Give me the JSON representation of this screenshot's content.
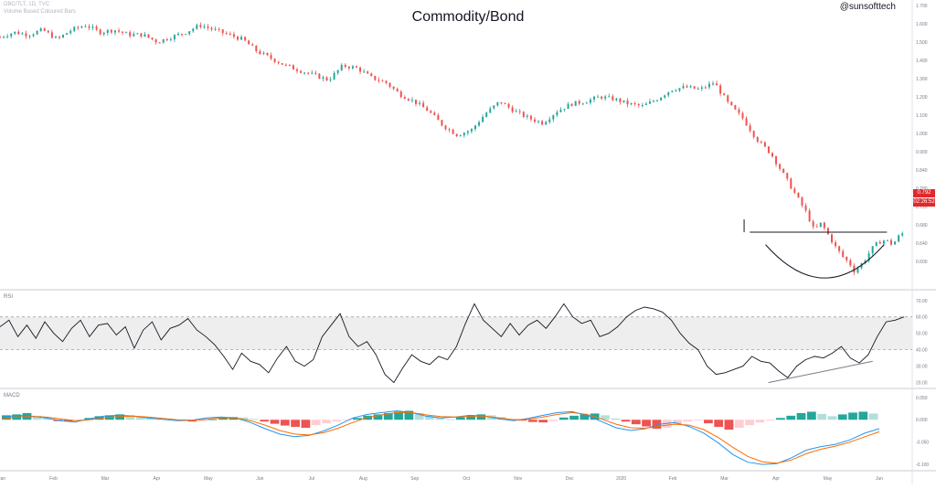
{
  "header": {
    "title": "Commodity/Bond",
    "symbol_line": "DBC/TLT, 1D, TVC",
    "volume_line": "Volume Based Coloured Bars",
    "handle": "@sunsofttech"
  },
  "panes": {
    "rsi_label": "RSI",
    "macd_label": "MACD"
  },
  "price_tag": {
    "value": "0.792",
    "countdown": "02:26:52",
    "color": "#e0292b"
  },
  "colors": {
    "up": "#26a69a",
    "down": "#ef5350",
    "rsi_line": "#131722",
    "macd_line": "#2196f3",
    "signal_line": "#ff6d00",
    "pattern_line": "#131722",
    "grid_band": "#eeeeee"
  },
  "chart_data": [
    {
      "type": "candlestick",
      "title": "Commodity/Bond",
      "x_ticks": [
        "Jan",
        "Feb",
        "Mar",
        "Apr",
        "May",
        "Jun",
        "Jul",
        "Aug",
        "Sep",
        "Oct",
        "Nov",
        "Dec",
        "2020",
        "Feb",
        "Mar",
        "Apr",
        "May",
        "Jun"
      ],
      "y_ticks": [
        "1.700",
        "1.600",
        "1.500",
        "1.400",
        "1.300",
        "1.200",
        "1.100",
        "1.000",
        "0.900",
        "0.840",
        "0.780",
        "0.720",
        "0.680",
        "0.640",
        "0.600"
      ],
      "ylim": [
        0.57,
        1.75
      ],
      "close_path": [
        [
          0,
          1.61
        ],
        [
          10,
          1.63
        ],
        [
          20,
          1.62
        ],
        [
          30,
          1.64
        ],
        [
          40,
          1.6
        ],
        [
          50,
          1.64
        ],
        [
          60,
          1.66
        ],
        [
          70,
          1.63
        ],
        [
          80,
          1.64
        ],
        [
          90,
          1.62
        ],
        [
          100,
          1.62
        ],
        [
          110,
          1.59
        ],
        [
          120,
          1.61
        ],
        [
          130,
          1.63
        ],
        [
          140,
          1.66
        ],
        [
          150,
          1.64
        ],
        [
          160,
          1.62
        ],
        [
          170,
          1.6
        ],
        [
          180,
          1.55
        ],
        [
          190,
          1.52
        ],
        [
          200,
          1.49
        ],
        [
          210,
          1.47
        ],
        [
          220,
          1.45
        ],
        [
          230,
          1.43
        ],
        [
          240,
          1.49
        ],
        [
          250,
          1.48
        ],
        [
          260,
          1.44
        ],
        [
          270,
          1.42
        ],
        [
          280,
          1.37
        ],
        [
          290,
          1.34
        ],
        [
          300,
          1.3
        ],
        [
          310,
          1.24
        ],
        [
          320,
          1.2
        ],
        [
          330,
          1.22
        ],
        [
          340,
          1.29
        ],
        [
          350,
          1.34
        ],
        [
          360,
          1.3
        ],
        [
          370,
          1.27
        ],
        [
          380,
          1.25
        ],
        [
          390,
          1.3
        ],
        [
          400,
          1.33
        ],
        [
          410,
          1.34
        ],
        [
          420,
          1.36
        ],
        [
          430,
          1.35
        ],
        [
          440,
          1.33
        ],
        [
          450,
          1.32
        ],
        [
          460,
          1.35
        ],
        [
          470,
          1.39
        ],
        [
          480,
          1.4
        ],
        [
          490,
          1.39
        ],
        [
          500,
          1.42
        ],
        [
          510,
          1.33
        ],
        [
          520,
          1.27
        ],
        [
          530,
          1.18
        ],
        [
          540,
          1.12
        ],
        [
          550,
          1.02
        ],
        [
          560,
          0.92
        ],
        [
          565,
          0.87
        ],
        [
          570,
          0.8
        ],
        [
          575,
          0.83
        ],
        [
          580,
          0.78
        ],
        [
          585,
          0.73
        ],
        [
          590,
          0.69
        ],
        [
          595,
          0.66
        ],
        [
          598,
          0.63
        ],
        [
          602,
          0.65
        ],
        [
          606,
          0.68
        ],
        [
          610,
          0.72
        ],
        [
          615,
          0.75
        ],
        [
          620,
          0.76
        ],
        [
          625,
          0.74
        ],
        [
          630,
          0.78
        ],
        [
          633,
          0.79
        ]
      ],
      "neckline_level": 0.792,
      "last_price": "0.792"
    },
    {
      "type": "line",
      "name": "RSI",
      "y_ticks": [
        "70.00",
        "60.00",
        "50.00",
        "40.00",
        "30.00",
        "20.00"
      ],
      "ylim": [
        17,
        76
      ],
      "band": [
        40,
        60
      ],
      "values": [
        [
          0,
          54
        ],
        [
          6,
          58
        ],
        [
          12,
          48
        ],
        [
          18,
          55
        ],
        [
          24,
          47
        ],
        [
          30,
          57
        ],
        [
          36,
          50
        ],
        [
          42,
          45
        ],
        [
          48,
          53
        ],
        [
          54,
          58
        ],
        [
          60,
          48
        ],
        [
          66,
          55
        ],
        [
          72,
          56
        ],
        [
          78,
          49
        ],
        [
          84,
          54
        ],
        [
          90,
          41
        ],
        [
          96,
          52
        ],
        [
          102,
          57
        ],
        [
          108,
          46
        ],
        [
          114,
          53
        ],
        [
          120,
          55
        ],
        [
          126,
          59
        ],
        [
          132,
          52
        ],
        [
          138,
          48
        ],
        [
          144,
          43
        ],
        [
          150,
          36
        ],
        [
          156,
          28
        ],
        [
          162,
          38
        ],
        [
          168,
          33
        ],
        [
          174,
          31
        ],
        [
          180,
          26
        ],
        [
          186,
          35
        ],
        [
          192,
          42
        ],
        [
          198,
          33
        ],
        [
          204,
          30
        ],
        [
          210,
          34
        ],
        [
          216,
          48
        ],
        [
          222,
          55
        ],
        [
          228,
          62
        ],
        [
          234,
          48
        ],
        [
          240,
          42
        ],
        [
          246,
          45
        ],
        [
          252,
          37
        ],
        [
          258,
          25
        ],
        [
          264,
          20
        ],
        [
          270,
          29
        ],
        [
          276,
          37
        ],
        [
          282,
          33
        ],
        [
          288,
          31
        ],
        [
          294,
          36
        ],
        [
          300,
          34
        ],
        [
          306,
          42
        ],
        [
          312,
          56
        ],
        [
          318,
          68
        ],
        [
          324,
          58
        ],
        [
          330,
          53
        ],
        [
          336,
          48
        ],
        [
          342,
          56
        ],
        [
          348,
          49
        ],
        [
          354,
          55
        ],
        [
          360,
          58
        ],
        [
          366,
          53
        ],
        [
          372,
          60
        ],
        [
          378,
          68
        ],
        [
          384,
          60
        ],
        [
          390,
          56
        ],
        [
          396,
          58
        ],
        [
          402,
          48
        ],
        [
          408,
          50
        ],
        [
          414,
          54
        ],
        [
          420,
          60
        ],
        [
          426,
          64
        ],
        [
          432,
          66
        ],
        [
          438,
          65
        ],
        [
          444,
          63
        ],
        [
          450,
          58
        ],
        [
          456,
          50
        ],
        [
          462,
          44
        ],
        [
          468,
          40
        ],
        [
          474,
          30
        ],
        [
          480,
          25
        ],
        [
          486,
          26
        ],
        [
          492,
          28
        ],
        [
          498,
          30
        ],
        [
          504,
          36
        ],
        [
          510,
          33
        ],
        [
          516,
          32
        ],
        [
          522,
          27
        ],
        [
          528,
          23
        ],
        [
          534,
          30
        ],
        [
          540,
          34
        ],
        [
          546,
          36
        ],
        [
          552,
          35
        ],
        [
          558,
          38
        ],
        [
          564,
          42
        ],
        [
          570,
          35
        ],
        [
          576,
          32
        ],
        [
          582,
          37
        ],
        [
          588,
          48
        ],
        [
          594,
          57
        ],
        [
          600,
          58
        ],
        [
          606,
          60
        ]
      ],
      "trendline": [
        [
          515,
          20
        ],
        [
          585,
          33
        ]
      ]
    },
    {
      "type": "histogram+line",
      "name": "MACD",
      "y_ticks": [
        "0.050",
        "0.000",
        "-0.050",
        "-0.100"
      ],
      "ylim": [
        -0.112,
        0.068
      ],
      "histogram": [
        0.01,
        0.012,
        0.015,
        0.009,
        0.004,
        -0.003,
        -0.004,
        -0.002,
        0.004,
        0.008,
        0.01,
        0.012,
        0.01,
        0.007,
        0.004,
        0.002,
        0.001,
        -0.002,
        -0.004,
        -0.003,
        0.001,
        0.004,
        0.006,
        0.005,
        0.002,
        -0.004,
        -0.009,
        -0.013,
        -0.016,
        -0.018,
        -0.012,
        -0.008,
        -0.004,
        -0.001,
        0.004,
        0.009,
        0.012,
        0.015,
        0.018,
        0.02,
        0.015,
        0.009,
        0.004,
        0.001,
        0.006,
        0.01,
        0.012,
        0.01,
        0.006,
        0.002,
        -0.002,
        -0.005,
        -0.006,
        -0.003,
        0.005,
        0.009,
        0.012,
        0.014,
        0.01,
        0.003,
        -0.004,
        -0.01,
        -0.015,
        -0.02,
        -0.018,
        -0.01,
        -0.004,
        -0.002,
        -0.008,
        -0.016,
        -0.022,
        -0.018,
        -0.012,
        -0.006,
        -0.002,
        0.004,
        0.009,
        0.015,
        0.018,
        0.013,
        0.008,
        0.012,
        0.016,
        0.018,
        0.014
      ],
      "macd_line": [
        0.005,
        0.01,
        0.008,
        0.004,
        -0.002,
        -0.005,
        0.002,
        0.008,
        0.01,
        0.008,
        0.004,
        0.001,
        -0.002,
        -0.001,
        0.004,
        0.006,
        0.004,
        -0.006,
        -0.02,
        -0.032,
        -0.038,
        -0.035,
        -0.025,
        -0.012,
        0.004,
        0.012,
        0.016,
        0.02,
        0.016,
        0.008,
        0.004,
        0.006,
        0.01,
        0.008,
        0.002,
        -0.002,
        0.003,
        0.01,
        0.016,
        0.018,
        0.01,
        -0.004,
        -0.018,
        -0.024,
        -0.02,
        -0.01,
        -0.006,
        -0.015,
        -0.03,
        -0.052,
        -0.078,
        -0.095,
        -0.1,
        -0.098,
        -0.085,
        -0.068,
        -0.06,
        -0.055,
        -0.045,
        -0.03,
        -0.02
      ],
      "signal_line": [
        0.002,
        0.006,
        0.007,
        0.006,
        0.002,
        -0.002,
        0.0,
        0.004,
        0.007,
        0.008,
        0.006,
        0.003,
        0.0,
        -0.001,
        0.001,
        0.004,
        0.004,
        -0.002,
        -0.012,
        -0.024,
        -0.032,
        -0.034,
        -0.029,
        -0.019,
        -0.006,
        0.005,
        0.011,
        0.016,
        0.016,
        0.011,
        0.007,
        0.006,
        0.008,
        0.008,
        0.004,
        0.0,
        0.001,
        0.006,
        0.012,
        0.016,
        0.012,
        0.002,
        -0.01,
        -0.018,
        -0.019,
        -0.014,
        -0.01,
        -0.012,
        -0.022,
        -0.04,
        -0.062,
        -0.082,
        -0.094,
        -0.097,
        -0.09,
        -0.076,
        -0.066,
        -0.059,
        -0.05,
        -0.038,
        -0.027
      ]
    }
  ]
}
